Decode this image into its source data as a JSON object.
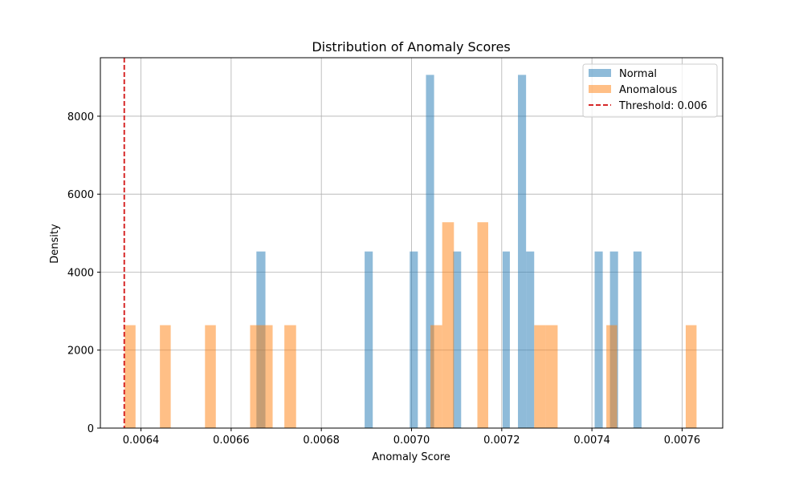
{
  "chart_data": {
    "type": "bar",
    "title": "Distribution of Anomaly Scores",
    "xlabel": "Anomaly Score",
    "ylabel": "Density",
    "xlim": [
      0.00631,
      0.00769
    ],
    "ylim": [
      0,
      9500
    ],
    "xticks": [
      0.0064,
      0.0066,
      0.0068,
      0.007,
      0.0072,
      0.0074,
      0.0076
    ],
    "xtick_labels": [
      "0.0064",
      "0.0066",
      "0.0068",
      "0.0070",
      "0.0072",
      "0.0074",
      "0.0076"
    ],
    "yticks": [
      0,
      2000,
      4000,
      6000,
      8000
    ],
    "ytick_labels": [
      "0",
      "2000",
      "4000",
      "6000",
      "8000"
    ],
    "grid": true,
    "legend_position": "top-right",
    "series": [
      {
        "name": "Normal",
        "color": "#1f77b4",
        "opacity": 0.5,
        "bins": [
          {
            "x0": 0.006656,
            "x1": 0.006676,
            "value": 4530
          },
          {
            "x0": 0.006896,
            "x1": 0.006914,
            "value": 4530
          },
          {
            "x0": 0.006996,
            "x1": 0.007014,
            "value": 4530
          },
          {
            "x0": 0.007032,
            "x1": 0.00705,
            "value": 9060
          },
          {
            "x0": 0.007092,
            "x1": 0.00711,
            "value": 4530
          },
          {
            "x0": 0.007202,
            "x1": 0.007218,
            "value": 4530
          },
          {
            "x0": 0.007236,
            "x1": 0.007254,
            "value": 9060
          },
          {
            "x0": 0.007254,
            "x1": 0.007272,
            "value": 4530
          },
          {
            "x0": 0.007406,
            "x1": 0.007424,
            "value": 4530
          },
          {
            "x0": 0.00744,
            "x1": 0.007458,
            "value": 4530
          },
          {
            "x0": 0.007492,
            "x1": 0.00751,
            "value": 4530
          }
        ]
      },
      {
        "name": "Anomalous",
        "color": "#ff7f0e",
        "opacity": 0.5,
        "bins": [
          {
            "x0": 0.006364,
            "x1": 0.006388,
            "value": 2640
          },
          {
            "x0": 0.006442,
            "x1": 0.006466,
            "value": 2640
          },
          {
            "x0": 0.006542,
            "x1": 0.006566,
            "value": 2640
          },
          {
            "x0": 0.006642,
            "x1": 0.006666,
            "value": 2640
          },
          {
            "x0": 0.006666,
            "x1": 0.006692,
            "value": 2640
          },
          {
            "x0": 0.006718,
            "x1": 0.006744,
            "value": 2640
          },
          {
            "x0": 0.007042,
            "x1": 0.007068,
            "value": 2640
          },
          {
            "x0": 0.007068,
            "x1": 0.007094,
            "value": 5280
          },
          {
            "x0": 0.007146,
            "x1": 0.00717,
            "value": 5280
          },
          {
            "x0": 0.007272,
            "x1": 0.007298,
            "value": 2640
          },
          {
            "x0": 0.007298,
            "x1": 0.007324,
            "value": 2640
          },
          {
            "x0": 0.007432,
            "x1": 0.007456,
            "value": 2640
          },
          {
            "x0": 0.007608,
            "x1": 0.007632,
            "value": 2640
          }
        ]
      }
    ],
    "threshold": {
      "label": "Threshold: 0.006",
      "x": 0.006363,
      "color": "#d62728",
      "style": "dashed"
    }
  }
}
